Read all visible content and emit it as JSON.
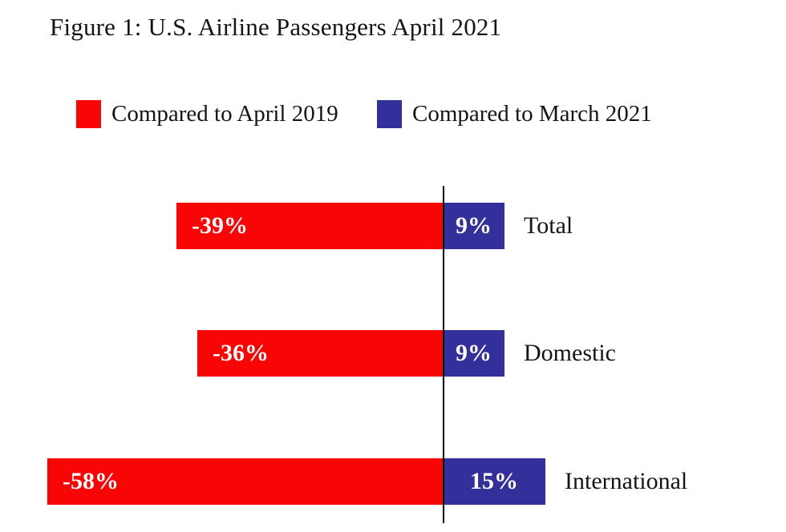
{
  "figure": {
    "title": "Figure 1: U.S. Airline Passengers April 2021"
  },
  "colors": {
    "red": "#fa0505",
    "blue": "#34309b",
    "axis": "#000000",
    "background": "#ffffff",
    "value_label_text": "#ffffff"
  },
  "chart_data": {
    "type": "bar",
    "orientation": "horizontal",
    "diverging": true,
    "title": "Figure 1: U.S. Airline Passengers April 2021",
    "categories": [
      "Total",
      "Domestic",
      "International"
    ],
    "series": [
      {
        "name": "Compared to April 2019",
        "color": "#fa0505",
        "values": [
          -39,
          -36,
          -58
        ],
        "labels": [
          "-39%",
          "-36%",
          "-58%"
        ]
      },
      {
        "name": "Compared to March 2021",
        "color": "#34309b",
        "values": [
          9,
          9,
          15
        ],
        "labels": [
          "9%",
          "9%",
          "15%"
        ]
      }
    ],
    "value_unit": "%",
    "xlim": [
      -65,
      22
    ],
    "zero_line": true,
    "grid": false,
    "legend_position": "top",
    "value_labels_shown": true
  }
}
